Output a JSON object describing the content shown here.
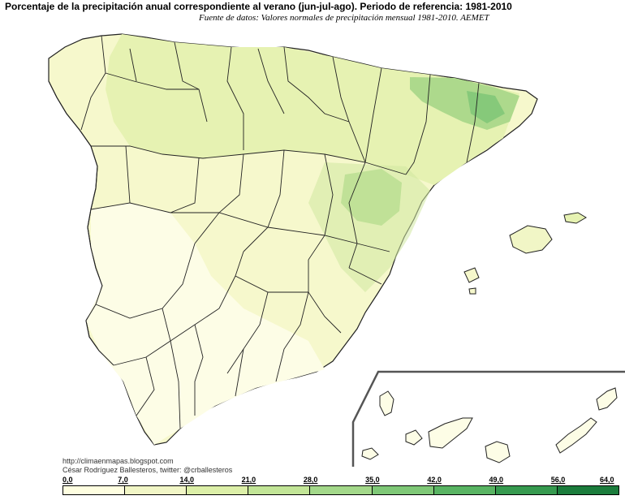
{
  "title": "Porcentaje de la precipitación anual correspondiente al verano (jun-jul-ago). Periodo de referencia: 1981-2010",
  "subtitle": "Fuente de datos: Valores normales de precipitación mensual 1981-2010. AEMET",
  "credits": {
    "line1": "http://climaenmapas.blogspot.com",
    "line2": "César Rodríguez Ballesteros, twitter: @crballesteros"
  },
  "legend": {
    "ticks": [
      "0,0",
      "7,0",
      "14,0",
      "21,0",
      "28,0",
      "35,0",
      "42,0",
      "49,0",
      "56,0",
      "64,0"
    ],
    "colors": [
      "#fefee0",
      "#f1f6c6",
      "#dcefa8",
      "#c2e597",
      "#a3d88a",
      "#7fc877",
      "#59b463",
      "#369a4f",
      "#1b7c3c"
    ]
  },
  "colors": {
    "very_low": "#fdfde6",
    "low": "#f6f8cc",
    "mid_low": "#e6f2b2",
    "mid": "#cfe8a0",
    "mid_high": "#add98c",
    "high": "#86c97a",
    "border": "#222222"
  }
}
